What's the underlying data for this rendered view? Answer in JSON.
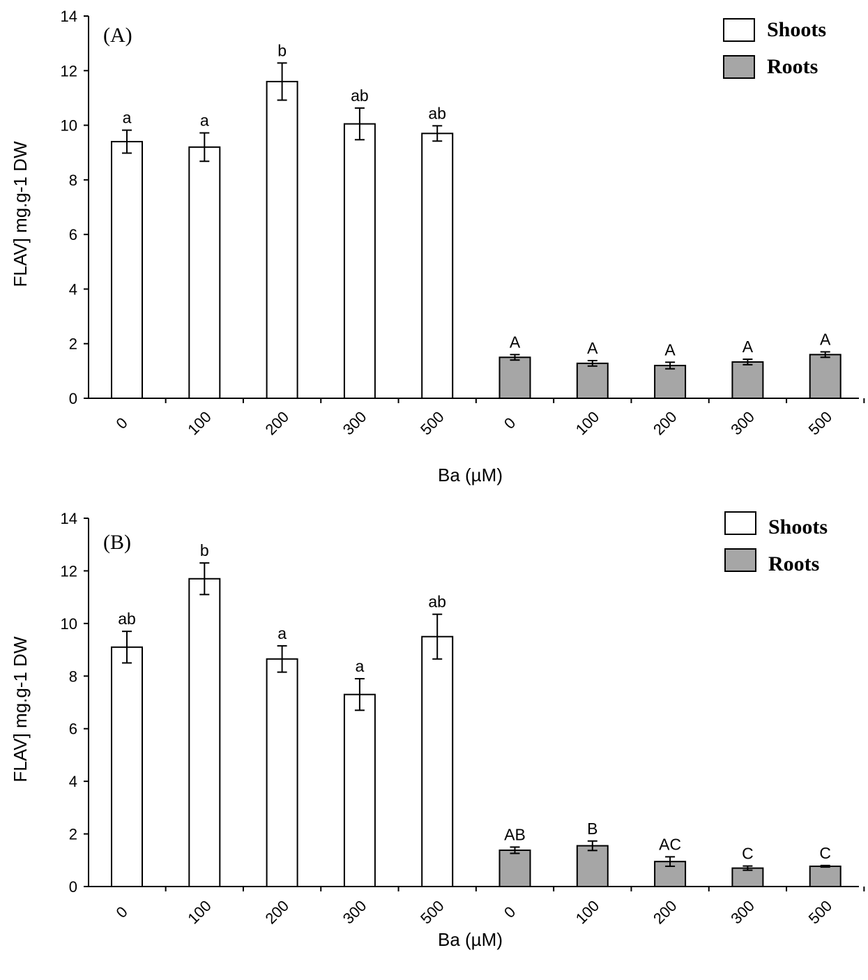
{
  "chart_data": [
    {
      "type": "bar",
      "panel_label": "(A)",
      "categories": [
        "0",
        "100",
        "200",
        "300",
        "500",
        "0",
        "100",
        "200",
        "300",
        "500"
      ],
      "groups": [
        "Shoots",
        "Shoots",
        "Shoots",
        "Shoots",
        "Shoots",
        "Roots",
        "Roots",
        "Roots",
        "Roots",
        "Roots"
      ],
      "values": [
        9.4,
        9.2,
        11.6,
        10.05,
        9.7,
        1.5,
        1.28,
        1.2,
        1.33,
        1.6
      ],
      "errors": [
        0.42,
        0.52,
        0.68,
        0.58,
        0.28,
        0.1,
        0.1,
        0.12,
        0.1,
        0.1
      ],
      "significance": [
        "a",
        "a",
        "b",
        "ab",
        "ab",
        "A",
        "A",
        "A",
        "A",
        "A"
      ],
      "legend": [
        {
          "name": "Shoots",
          "color": "#ffffff"
        },
        {
          "name": "Roots",
          "color": "#a6a6a6"
        }
      ],
      "xlabel": "Ba (µM)",
      "ylabel": "FLAV] mg.g-1 DW",
      "ylim": [
        0,
        14
      ],
      "yticks": [
        "0",
        "2",
        "4",
        "6",
        "8",
        "10",
        "12",
        "14"
      ],
      "grid": false,
      "legend_position": "top-right"
    },
    {
      "type": "bar",
      "panel_label": "(B)",
      "categories": [
        "0",
        "100",
        "200",
        "300",
        "500",
        "0",
        "100",
        "200",
        "300",
        "500"
      ],
      "groups": [
        "Shoots",
        "Shoots",
        "Shoots",
        "Shoots",
        "Shoots",
        "Roots",
        "Roots",
        "Roots",
        "Roots",
        "Roots"
      ],
      "values": [
        9.1,
        11.7,
        8.65,
        7.3,
        9.5,
        1.38,
        1.55,
        0.95,
        0.7,
        0.77
      ],
      "errors": [
        0.6,
        0.6,
        0.5,
        0.6,
        0.85,
        0.12,
        0.18,
        0.18,
        0.08,
        0.03
      ],
      "significance": [
        "ab",
        "b",
        "a",
        "a",
        "ab",
        "AB",
        "B",
        "AC",
        "C",
        "C"
      ],
      "legend": [
        {
          "name": "Shoots",
          "color": "#ffffff"
        },
        {
          "name": "Roots",
          "color": "#a6a6a6"
        }
      ],
      "xlabel": "Ba (µM)",
      "ylabel": "FLAV] mg.g-1 DW",
      "ylim": [
        0,
        14
      ],
      "yticks": [
        "0",
        "2",
        "4",
        "6",
        "8",
        "10",
        "12",
        "14"
      ],
      "grid": false,
      "legend_position": "top-right"
    }
  ]
}
